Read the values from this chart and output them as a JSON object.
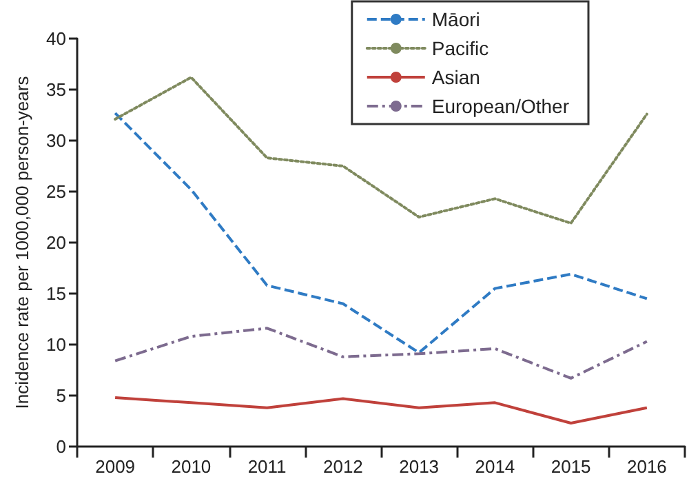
{
  "chart_data": {
    "type": "line",
    "ylabel": "Incidence rate per 1000,000 person-years",
    "categories": [
      "2009",
      "2010",
      "2011",
      "2012",
      "2013",
      "2014",
      "2015",
      "2016"
    ],
    "series": [
      {
        "name": "Māori",
        "color": "#2f7bc4",
        "line_style": "dashed",
        "values": [
          32.7,
          25.2,
          15.8,
          14.0,
          9.2,
          15.5,
          16.9,
          14.5
        ]
      },
      {
        "name": "Pacific",
        "color": "#7f8a5e",
        "line_style": "dotted",
        "values": [
          32.1,
          36.2,
          28.3,
          27.5,
          22.5,
          24.3,
          21.9,
          32.6
        ]
      },
      {
        "name": "Asian",
        "color": "#c0413b",
        "line_style": "solid",
        "values": [
          4.8,
          4.3,
          3.8,
          4.7,
          3.8,
          4.3,
          2.3,
          3.8
        ]
      },
      {
        "name": "European/Other",
        "color": "#7d6b8f",
        "line_style": "dashdot",
        "values": [
          8.4,
          10.8,
          11.6,
          8.8,
          9.1,
          9.6,
          6.7,
          10.3
        ]
      }
    ],
    "ylim": [
      0,
      40
    ],
    "yticks": [
      0,
      5,
      10,
      15,
      20,
      25,
      30,
      35,
      40
    ],
    "grid": false,
    "legend": "top right",
    "marker": "none"
  }
}
